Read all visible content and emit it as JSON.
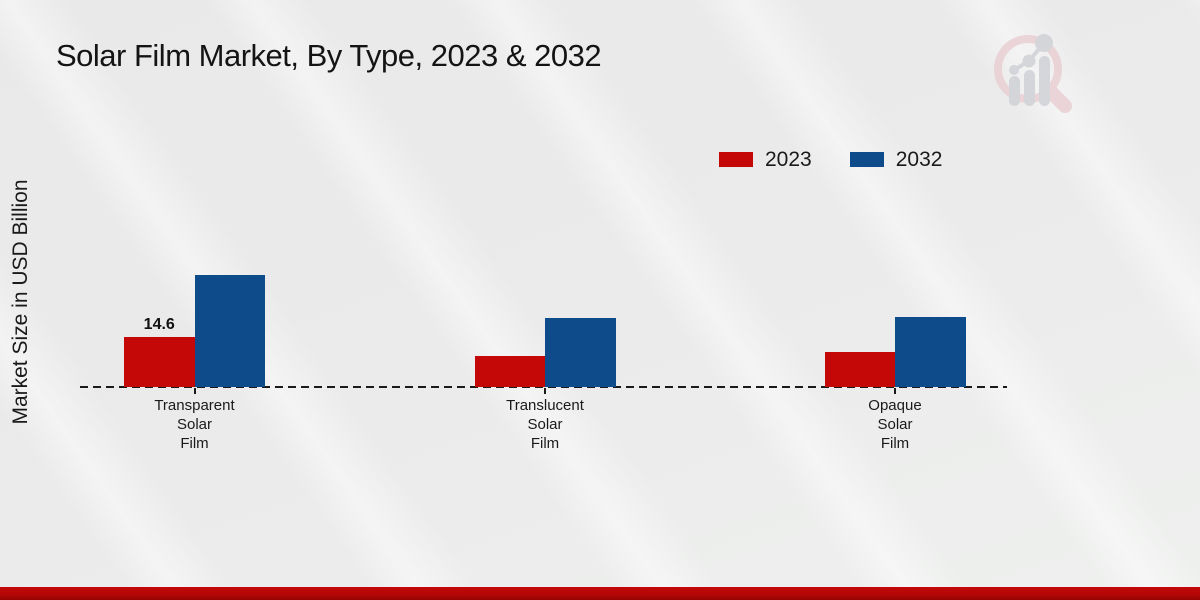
{
  "page": {
    "title": "Solar Film Market, By Type, 2023 & 2032"
  },
  "watermark": {
    "name": "market-research-magnifier-logo",
    "ring_color": "#e9cfd3",
    "glyph_color": "#cfd1d6"
  },
  "footer": {
    "accent_color": "#b30606"
  },
  "chart_data": {
    "type": "bar",
    "title": "Solar Film Market, By Type, 2023 & 2032",
    "ylabel": "Market Size in USD Billion",
    "unit": "USD Billion",
    "categories": [
      "Transparent Solar Film",
      "Translucent Solar Film",
      "Opaque Solar Film"
    ],
    "category_label_lines": [
      [
        "Transparent",
        "Solar",
        "Film"
      ],
      [
        "Translucent",
        "Solar",
        "Film"
      ],
      [
        "Opaque",
        "Solar",
        "Film"
      ]
    ],
    "series": [
      {
        "name": "2023",
        "color": "#c40808",
        "values": [
          14.6,
          9.1,
          10.2
        ]
      },
      {
        "name": "2032",
        "color": "#0d4b8b",
        "values": [
          32.7,
          20.2,
          20.5
        ]
      }
    ],
    "data_labels": [
      {
        "series_index": 0,
        "category_index": 0,
        "text": "14.6"
      }
    ],
    "baseline": {
      "value": 0,
      "style": "dashed",
      "color": "#1a1a1a"
    },
    "y_axis_visible": false,
    "grid": false,
    "legend_position": "top-right",
    "ylim": [
      0,
      35
    ]
  }
}
